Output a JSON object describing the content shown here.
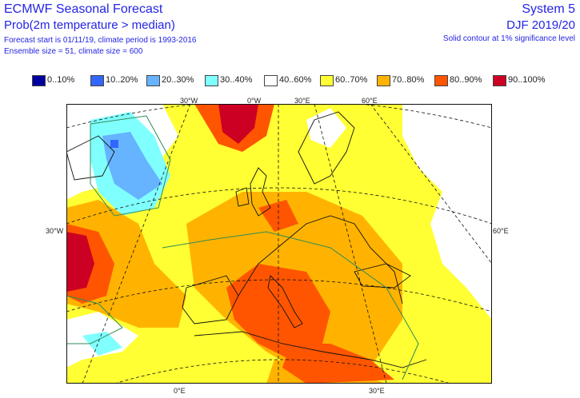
{
  "header": {
    "title": "ECMWF Seasonal Forecast",
    "subtitle": "Prob(2m temperature > median)",
    "line3": "Forecast start is 01/11/19, climate period is 1993-2016",
    "line4": "Ensemble size = 51, climate size = 600",
    "system": "System 5",
    "season": "DJF 2019/20",
    "note": "Solid contour at 1% significance level"
  },
  "legend": [
    {
      "label": "0..10%",
      "color": "#00009e"
    },
    {
      "label": "10..20%",
      "color": "#3366ff"
    },
    {
      "label": "20..30%",
      "color": "#66b3ff"
    },
    {
      "label": "30..40%",
      "color": "#80ffff"
    },
    {
      "label": "40..60%",
      "color": "#ffffff"
    },
    {
      "label": "60..70%",
      "color": "#ffff33"
    },
    {
      "label": "70..80%",
      "color": "#ffb300"
    },
    {
      "label": "80..90%",
      "color": "#ff5500"
    },
    {
      "label": "90..100%",
      "color": "#cc0022"
    }
  ],
  "ticks": {
    "top_30w": "30°W",
    "top_0w": "0°W",
    "top_30e": "30°E",
    "top_60e": "60°E",
    "left_30w": "30°W",
    "right_60e": "60°E",
    "bottom_0e": "0°E",
    "bottom_30e": "30°E"
  }
}
